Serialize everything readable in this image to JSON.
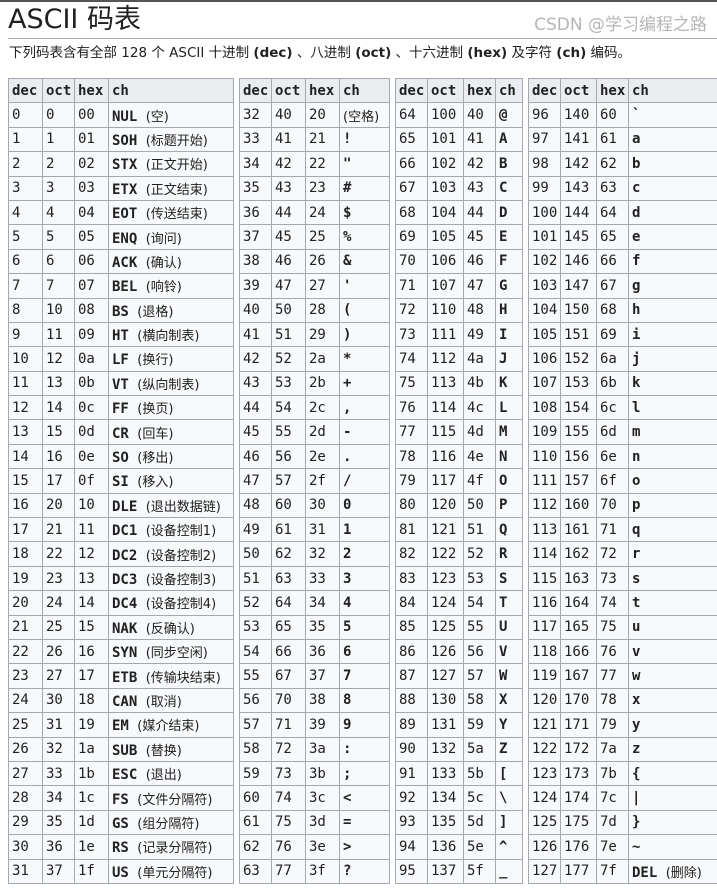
{
  "page": {
    "title": "ASCII 码表",
    "intro": [
      {
        "text": "下列码表含有全部 128 个 ASCII 十进制 ",
        "bold": false
      },
      {
        "text": "(dec)",
        "bold": true
      },
      {
        "text": " 、八进制 ",
        "bold": false
      },
      {
        "text": "(oct)",
        "bold": true
      },
      {
        "text": " 、十六进制 ",
        "bold": false
      },
      {
        "text": "(hex)",
        "bold": true
      },
      {
        "text": " 及字符 ",
        "bold": false
      },
      {
        "text": "(ch)",
        "bold": true
      },
      {
        "text": " 编码。",
        "bold": false
      }
    ],
    "watermark": "CSDN @学习编程之路"
  },
  "columns": [
    "dec",
    "oct",
    "hex",
    "ch"
  ],
  "tables": [
    [
      [
        "0",
        "0",
        "00",
        "NUL",
        "(空)"
      ],
      [
        "1",
        "1",
        "01",
        "SOH",
        "(标题开始)"
      ],
      [
        "2",
        "2",
        "02",
        "STX",
        "(正文开始)"
      ],
      [
        "3",
        "3",
        "03",
        "ETX",
        "(正文结束)"
      ],
      [
        "4",
        "4",
        "04",
        "EOT",
        "(传送结束)"
      ],
      [
        "5",
        "5",
        "05",
        "ENQ",
        "(询问)"
      ],
      [
        "6",
        "6",
        "06",
        "ACK",
        "(确认)"
      ],
      [
        "7",
        "7",
        "07",
        "BEL",
        "(响铃)"
      ],
      [
        "8",
        "10",
        "08",
        "BS",
        "(退格)"
      ],
      [
        "9",
        "11",
        "09",
        "HT",
        "(横向制表)"
      ],
      [
        "10",
        "12",
        "0a",
        "LF",
        "(换行)"
      ],
      [
        "11",
        "13",
        "0b",
        "VT",
        "(纵向制表)"
      ],
      [
        "12",
        "14",
        "0c",
        "FF",
        "(换页)"
      ],
      [
        "13",
        "15",
        "0d",
        "CR",
        "(回车)"
      ],
      [
        "14",
        "16",
        "0e",
        "SO",
        "(移出)"
      ],
      [
        "15",
        "17",
        "0f",
        "SI",
        "(移入)"
      ],
      [
        "16",
        "20",
        "10",
        "DLE",
        "(退出数据链)"
      ],
      [
        "17",
        "21",
        "11",
        "DC1",
        "(设备控制1)"
      ],
      [
        "18",
        "22",
        "12",
        "DC2",
        "(设备控制2)"
      ],
      [
        "19",
        "23",
        "13",
        "DC3",
        "(设备控制3)"
      ],
      [
        "20",
        "24",
        "14",
        "DC4",
        "(设备控制4)"
      ],
      [
        "21",
        "25",
        "15",
        "NAK",
        "(反确认)"
      ],
      [
        "22",
        "26",
        "16",
        "SYN",
        "(同步空闲)"
      ],
      [
        "23",
        "27",
        "17",
        "ETB",
        "(传输块结束)"
      ],
      [
        "24",
        "30",
        "18",
        "CAN",
        "(取消)"
      ],
      [
        "25",
        "31",
        "19",
        "EM",
        "(媒介结束)"
      ],
      [
        "26",
        "32",
        "1a",
        "SUB",
        "(替换)"
      ],
      [
        "27",
        "33",
        "1b",
        "ESC",
        "(退出)"
      ],
      [
        "28",
        "34",
        "1c",
        "FS",
        "(文件分隔符)"
      ],
      [
        "29",
        "35",
        "1d",
        "GS",
        "(组分隔符)"
      ],
      [
        "30",
        "36",
        "1e",
        "RS",
        "(记录分隔符)"
      ],
      [
        "31",
        "37",
        "1f",
        "US",
        "(单元分隔符)"
      ]
    ],
    [
      [
        "32",
        "40",
        "20",
        "",
        "(空格)"
      ],
      [
        "33",
        "41",
        "21",
        "!",
        ""
      ],
      [
        "34",
        "42",
        "22",
        "\"",
        ""
      ],
      [
        "35",
        "43",
        "23",
        "#",
        ""
      ],
      [
        "36",
        "44",
        "24",
        "$",
        ""
      ],
      [
        "37",
        "45",
        "25",
        "%",
        ""
      ],
      [
        "38",
        "46",
        "26",
        "&",
        ""
      ],
      [
        "39",
        "47",
        "27",
        "'",
        ""
      ],
      [
        "40",
        "50",
        "28",
        "(",
        ""
      ],
      [
        "41",
        "51",
        "29",
        ")",
        ""
      ],
      [
        "42",
        "52",
        "2a",
        "*",
        ""
      ],
      [
        "43",
        "53",
        "2b",
        "+",
        ""
      ],
      [
        "44",
        "54",
        "2c",
        ",",
        ""
      ],
      [
        "45",
        "55",
        "2d",
        "-",
        ""
      ],
      [
        "46",
        "56",
        "2e",
        ".",
        ""
      ],
      [
        "47",
        "57",
        "2f",
        "/",
        ""
      ],
      [
        "48",
        "60",
        "30",
        "0",
        ""
      ],
      [
        "49",
        "61",
        "31",
        "1",
        ""
      ],
      [
        "50",
        "62",
        "32",
        "2",
        ""
      ],
      [
        "51",
        "63",
        "33",
        "3",
        ""
      ],
      [
        "52",
        "64",
        "34",
        "4",
        ""
      ],
      [
        "53",
        "65",
        "35",
        "5",
        ""
      ],
      [
        "54",
        "66",
        "36",
        "6",
        ""
      ],
      [
        "55",
        "67",
        "37",
        "7",
        ""
      ],
      [
        "56",
        "70",
        "38",
        "8",
        ""
      ],
      [
        "57",
        "71",
        "39",
        "9",
        ""
      ],
      [
        "58",
        "72",
        "3a",
        ":",
        ""
      ],
      [
        "59",
        "73",
        "3b",
        ";",
        ""
      ],
      [
        "60",
        "74",
        "3c",
        "<",
        ""
      ],
      [
        "61",
        "75",
        "3d",
        "=",
        ""
      ],
      [
        "62",
        "76",
        "3e",
        ">",
        ""
      ],
      [
        "63",
        "77",
        "3f",
        "?",
        ""
      ]
    ],
    [
      [
        "64",
        "100",
        "40",
        "@",
        ""
      ],
      [
        "65",
        "101",
        "41",
        "A",
        ""
      ],
      [
        "66",
        "102",
        "42",
        "B",
        ""
      ],
      [
        "67",
        "103",
        "43",
        "C",
        ""
      ],
      [
        "68",
        "104",
        "44",
        "D",
        ""
      ],
      [
        "69",
        "105",
        "45",
        "E",
        ""
      ],
      [
        "70",
        "106",
        "46",
        "F",
        ""
      ],
      [
        "71",
        "107",
        "47",
        "G",
        ""
      ],
      [
        "72",
        "110",
        "48",
        "H",
        ""
      ],
      [
        "73",
        "111",
        "49",
        "I",
        ""
      ],
      [
        "74",
        "112",
        "4a",
        "J",
        ""
      ],
      [
        "75",
        "113",
        "4b",
        "K",
        ""
      ],
      [
        "76",
        "114",
        "4c",
        "L",
        ""
      ],
      [
        "77",
        "115",
        "4d",
        "M",
        ""
      ],
      [
        "78",
        "116",
        "4e",
        "N",
        ""
      ],
      [
        "79",
        "117",
        "4f",
        "O",
        ""
      ],
      [
        "80",
        "120",
        "50",
        "P",
        ""
      ],
      [
        "81",
        "121",
        "51",
        "Q",
        ""
      ],
      [
        "82",
        "122",
        "52",
        "R",
        ""
      ],
      [
        "83",
        "123",
        "53",
        "S",
        ""
      ],
      [
        "84",
        "124",
        "54",
        "T",
        ""
      ],
      [
        "85",
        "125",
        "55",
        "U",
        ""
      ],
      [
        "86",
        "126",
        "56",
        "V",
        ""
      ],
      [
        "87",
        "127",
        "57",
        "W",
        ""
      ],
      [
        "88",
        "130",
        "58",
        "X",
        ""
      ],
      [
        "89",
        "131",
        "59",
        "Y",
        ""
      ],
      [
        "90",
        "132",
        "5a",
        "Z",
        ""
      ],
      [
        "91",
        "133",
        "5b",
        "[",
        ""
      ],
      [
        "92",
        "134",
        "5c",
        "\\",
        ""
      ],
      [
        "93",
        "135",
        "5d",
        "]",
        ""
      ],
      [
        "94",
        "136",
        "5e",
        "^",
        ""
      ],
      [
        "95",
        "137",
        "5f",
        "_",
        ""
      ]
    ],
    [
      [
        "96",
        "140",
        "60",
        "`",
        ""
      ],
      [
        "97",
        "141",
        "61",
        "a",
        ""
      ],
      [
        "98",
        "142",
        "62",
        "b",
        ""
      ],
      [
        "99",
        "143",
        "63",
        "c",
        ""
      ],
      [
        "100",
        "144",
        "64",
        "d",
        ""
      ],
      [
        "101",
        "145",
        "65",
        "e",
        ""
      ],
      [
        "102",
        "146",
        "66",
        "f",
        ""
      ],
      [
        "103",
        "147",
        "67",
        "g",
        ""
      ],
      [
        "104",
        "150",
        "68",
        "h",
        ""
      ],
      [
        "105",
        "151",
        "69",
        "i",
        ""
      ],
      [
        "106",
        "152",
        "6a",
        "j",
        ""
      ],
      [
        "107",
        "153",
        "6b",
        "k",
        ""
      ],
      [
        "108",
        "154",
        "6c",
        "l",
        ""
      ],
      [
        "109",
        "155",
        "6d",
        "m",
        ""
      ],
      [
        "110",
        "156",
        "6e",
        "n",
        ""
      ],
      [
        "111",
        "157",
        "6f",
        "o",
        ""
      ],
      [
        "112",
        "160",
        "70",
        "p",
        ""
      ],
      [
        "113",
        "161",
        "71",
        "q",
        ""
      ],
      [
        "114",
        "162",
        "72",
        "r",
        ""
      ],
      [
        "115",
        "163",
        "73",
        "s",
        ""
      ],
      [
        "116",
        "164",
        "74",
        "t",
        ""
      ],
      [
        "117",
        "165",
        "75",
        "u",
        ""
      ],
      [
        "118",
        "166",
        "76",
        "v",
        ""
      ],
      [
        "119",
        "167",
        "77",
        "w",
        ""
      ],
      [
        "120",
        "170",
        "78",
        "x",
        ""
      ],
      [
        "121",
        "171",
        "79",
        "y",
        ""
      ],
      [
        "122",
        "172",
        "7a",
        "z",
        ""
      ],
      [
        "123",
        "173",
        "7b",
        "{",
        ""
      ],
      [
        "124",
        "174",
        "7c",
        "|",
        ""
      ],
      [
        "125",
        "175",
        "7d",
        "}",
        ""
      ],
      [
        "126",
        "176",
        "7e",
        "~",
        ""
      ],
      [
        "127",
        "177",
        "7f",
        "DEL",
        "(删除)"
      ]
    ]
  ]
}
